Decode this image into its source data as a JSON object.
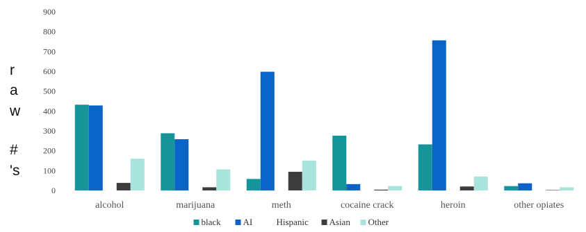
{
  "chart_data": {
    "type": "bar",
    "categories": [
      "alcohol",
      "marijuana",
      "meth",
      "cocaine crack",
      "heroin",
      "other opiates"
    ],
    "series": [
      {
        "name": "black",
        "color": "#15959a",
        "values": [
          432,
          288,
          58,
          276,
          232,
          22
        ]
      },
      {
        "name": "AI",
        "color": "#0a63c6",
        "values": [
          428,
          258,
          598,
          32,
          756,
          36
        ]
      },
      {
        "name": "Hispanic",
        "color": "#ffffff",
        "values": [
          0,
          0,
          0,
          0,
          0,
          0
        ]
      },
      {
        "name": "Asian",
        "color": "#3c3c3c",
        "values": [
          38,
          16,
          94,
          4,
          20,
          2
        ]
      },
      {
        "name": "Other",
        "color": "#a8e3dc",
        "values": [
          160,
          106,
          150,
          22,
          70,
          16
        ]
      }
    ],
    "yticks": [
      "0",
      "100",
      "200",
      "300",
      "400",
      "500",
      "600",
      "700",
      "800",
      "900"
    ],
    "ylabel": "r a w # 's",
    "ylim": [
      0,
      900
    ],
    "legend_position": "bottom"
  }
}
